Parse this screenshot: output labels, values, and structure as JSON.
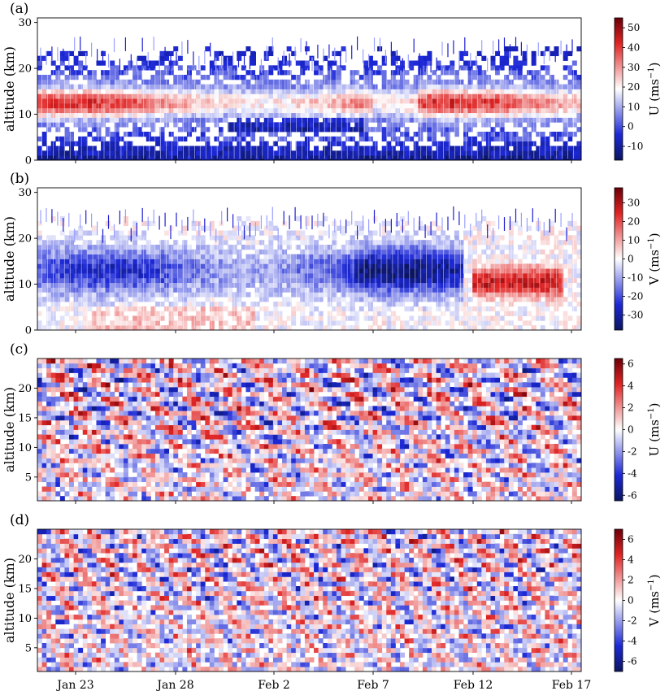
{
  "chart_data": [
    {
      "type": "heatmap",
      "panel_label": "(a)",
      "ylabel": "altitude (km)",
      "colorbar_label": "U (ms⁻¹)",
      "colorbar_label_base": "U",
      "colorbar_unit_main": "(ms",
      "colorbar_unit_sup": "−1",
      "colorbar_unit_close": ")",
      "ylim": [
        0,
        31
      ],
      "yticks": [
        0,
        10,
        20,
        30
      ],
      "clim": [
        -17,
        55
      ],
      "colorbar_ticks": [
        -10,
        0,
        10,
        20,
        30,
        40,
        50
      ],
      "description_fields": {
        "max_wind_band_km": [
          8,
          18
        ],
        "peak_value": 50
      }
    },
    {
      "type": "heatmap",
      "panel_label": "(b)",
      "ylabel": "altitude (km)",
      "colorbar_label": "V (ms⁻¹)",
      "colorbar_label_base": "V",
      "colorbar_unit_main": "(ms",
      "colorbar_unit_sup": "−1",
      "colorbar_unit_close": ")",
      "ylim": [
        0,
        31
      ],
      "yticks": [
        0,
        10,
        20,
        30
      ],
      "clim": [
        -38,
        38
      ],
      "colorbar_ticks": [
        -30,
        -20,
        -10,
        0,
        10,
        20,
        30
      ]
    },
    {
      "type": "heatmap",
      "panel_label": "(c)",
      "ylabel": "altitude (km)",
      "colorbar_label": "U (ms⁻¹)",
      "colorbar_label_base": "U",
      "colorbar_unit_main": "(ms",
      "colorbar_unit_sup": "−1",
      "colorbar_unit_close": ")",
      "ylim": [
        1,
        25
      ],
      "yticks": [
        5,
        10,
        15,
        20
      ],
      "clim": [
        -6.5,
        6.5
      ],
      "colorbar_ticks": [
        -6,
        -4,
        -2,
        0,
        2,
        4,
        6
      ]
    },
    {
      "type": "heatmap",
      "panel_label": "(d)",
      "ylabel": "altitude (km)",
      "colorbar_label": "V (ms⁻¹)",
      "colorbar_label_base": "V",
      "colorbar_unit_main": "(ms",
      "colorbar_unit_sup": "−1",
      "colorbar_unit_close": ")",
      "ylim": [
        1,
        25
      ],
      "yticks": [
        5,
        10,
        15,
        20
      ],
      "clim": [
        -7,
        7
      ],
      "colorbar_ticks": [
        -6,
        -4,
        -2,
        0,
        2,
        4,
        6
      ]
    }
  ],
  "shared_x": {
    "tick_labels": [
      "Jan 23",
      "Jan 28",
      "Feb 2",
      "Feb 7",
      "Feb 12",
      "Feb 17"
    ],
    "range_days": [
      "Jan 21",
      "Feb 17"
    ]
  },
  "colormap": {
    "low": "#0a1a5c",
    "mid": "#ffffff",
    "high": "#6a0008",
    "blue": "#1e1ed2",
    "red": "#d82020"
  }
}
